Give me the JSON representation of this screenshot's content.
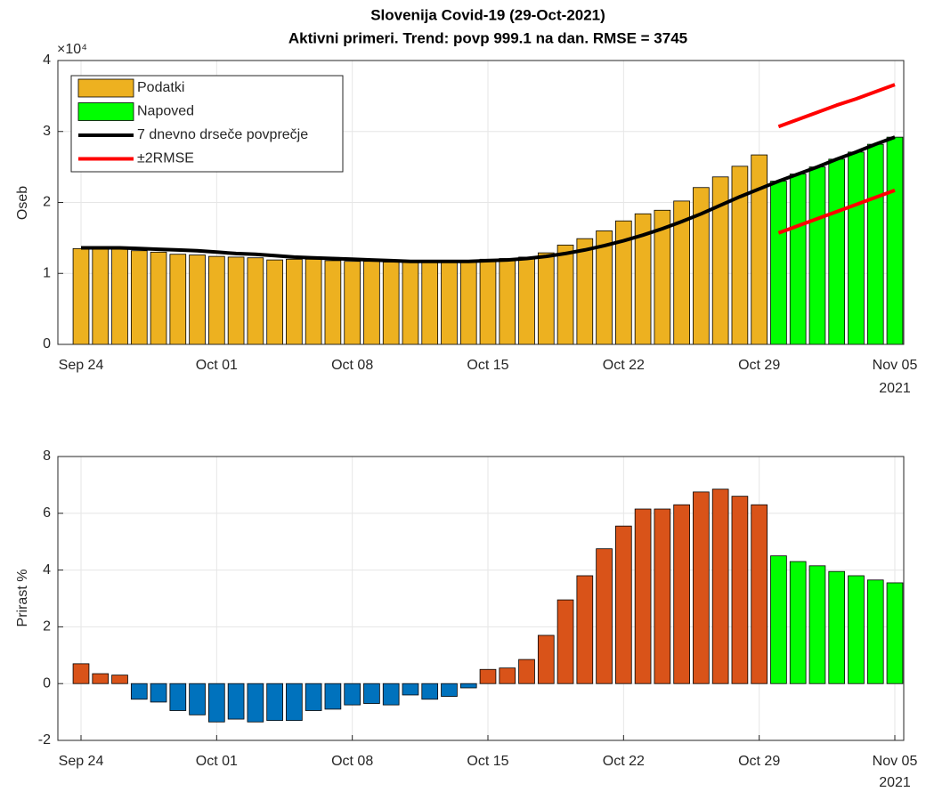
{
  "chart_data": [
    {
      "type": "bar",
      "title": "Slovenija Covid-19 (29-Oct-2021)",
      "subtitle": "Aktivni primeri. Trend: povp 999.1 na dan. RMSE = 3745",
      "ylabel": "Oseb",
      "y_exponent": "×10⁴",
      "categories": [
        "Sep 24",
        null,
        null,
        null,
        null,
        null,
        null,
        "Oct 01",
        null,
        null,
        null,
        null,
        null,
        null,
        "Oct 08",
        null,
        null,
        null,
        null,
        null,
        null,
        "Oct 15",
        null,
        null,
        null,
        null,
        null,
        null,
        "Oct 22",
        null,
        null,
        null,
        null,
        null,
        null,
        "Oct 29",
        null,
        null,
        null,
        null,
        null,
        null,
        "Nov 05"
      ],
      "x_year_label": "2021",
      "ylim": [
        0,
        4
      ],
      "yticks": [
        0,
        1,
        2,
        3,
        4
      ],
      "grid": true,
      "legend": "northwest",
      "series": [
        {
          "name": "Podatki",
          "style": "bar",
          "color": "#edb120",
          "values": [
            1.35,
            1.36,
            1.35,
            1.32,
            1.3,
            1.27,
            1.26,
            1.24,
            1.23,
            1.22,
            1.19,
            1.2,
            1.2,
            1.18,
            1.17,
            1.17,
            1.16,
            1.16,
            1.16,
            1.16,
            1.17,
            1.2,
            1.21,
            1.23,
            1.29,
            1.4,
            1.49,
            1.6,
            1.74,
            1.84,
            1.89,
            2.02,
            2.21,
            2.36,
            2.51,
            2.67,
            null,
            null,
            null,
            null,
            null,
            null,
            null
          ]
        },
        {
          "name": "Napoved",
          "style": "bar",
          "color": "#00ff00",
          "values": [
            null,
            null,
            null,
            null,
            null,
            null,
            null,
            null,
            null,
            null,
            null,
            null,
            null,
            null,
            null,
            null,
            null,
            null,
            null,
            null,
            null,
            null,
            null,
            null,
            null,
            null,
            null,
            null,
            null,
            null,
            null,
            null,
            null,
            null,
            null,
            null,
            2.3,
            2.4,
            2.5,
            2.61,
            2.71,
            2.82,
            2.92
          ]
        },
        {
          "name": "7 dnevno drseče povprečje",
          "style": "line",
          "color": "#000000",
          "values": [
            1.36,
            1.36,
            1.36,
            1.35,
            1.34,
            1.33,
            1.32,
            1.3,
            1.28,
            1.27,
            1.25,
            1.23,
            1.22,
            1.21,
            1.2,
            1.19,
            1.18,
            1.17,
            1.17,
            1.17,
            1.17,
            1.18,
            1.19,
            1.21,
            1.24,
            1.28,
            1.33,
            1.39,
            1.46,
            1.54,
            1.63,
            1.73,
            1.84,
            1.96,
            2.08,
            2.19,
            2.3,
            2.4,
            2.5,
            2.61,
            2.71,
            2.82,
            2.92
          ]
        },
        {
          "name": "±2RMSE",
          "style": "line",
          "color": "#ff0000",
          "values": [
            null,
            null,
            null,
            null,
            null,
            null,
            null,
            null,
            null,
            null,
            null,
            null,
            null,
            null,
            null,
            null,
            null,
            null,
            null,
            null,
            null,
            null,
            null,
            null,
            null,
            null,
            null,
            null,
            null,
            null,
            null,
            null,
            null,
            null,
            null,
            null,
            3.07,
            3.17,
            3.27,
            3.37,
            3.46,
            3.56,
            3.66
          ]
        },
        {
          "style": "line",
          "color": "#ff0000",
          "values": [
            null,
            null,
            null,
            null,
            null,
            null,
            null,
            null,
            null,
            null,
            null,
            null,
            null,
            null,
            null,
            null,
            null,
            null,
            null,
            null,
            null,
            null,
            null,
            null,
            null,
            null,
            null,
            null,
            null,
            null,
            null,
            null,
            null,
            null,
            null,
            null,
            1.57,
            1.67,
            1.77,
            1.87,
            1.97,
            2.07,
            2.17
          ]
        }
      ]
    },
    {
      "type": "bar",
      "ylabel": "Prirast %",
      "categories": [
        "Sep 24",
        null,
        null,
        null,
        null,
        null,
        null,
        "Oct 01",
        null,
        null,
        null,
        null,
        null,
        null,
        "Oct 08",
        null,
        null,
        null,
        null,
        null,
        null,
        "Oct 15",
        null,
        null,
        null,
        null,
        null,
        null,
        "Oct 22",
        null,
        null,
        null,
        null,
        null,
        null,
        "Oct 29",
        null,
        null,
        null,
        null,
        null,
        null,
        "Nov 05"
      ],
      "x_year_label": "2021",
      "ylim": [
        -2,
        8
      ],
      "yticks": [
        -2,
        0,
        2,
        4,
        6,
        8
      ],
      "grid": true,
      "series": [
        {
          "style": "bar",
          "color": "#d95319",
          "negative_color": "#0072bd",
          "values": [
            0.7,
            0.35,
            0.3,
            -0.55,
            -0.65,
            -0.95,
            -1.1,
            -1.35,
            -1.25,
            -1.35,
            -1.3,
            -1.3,
            -0.95,
            -0.9,
            -0.75,
            -0.7,
            -0.75,
            -0.4,
            -0.55,
            -0.45,
            -0.15,
            0.5,
            0.55,
            0.85,
            1.7,
            2.95,
            3.8,
            4.75,
            5.55,
            6.15,
            6.15,
            6.3,
            6.75,
            6.85,
            6.6,
            6.3,
            null,
            null,
            null,
            null,
            null,
            null,
            null
          ]
        },
        {
          "style": "bar",
          "color": "#00ff00",
          "values": [
            null,
            null,
            null,
            null,
            null,
            null,
            null,
            null,
            null,
            null,
            null,
            null,
            null,
            null,
            null,
            null,
            null,
            null,
            null,
            null,
            null,
            null,
            null,
            null,
            null,
            null,
            null,
            null,
            null,
            null,
            null,
            null,
            null,
            null,
            null,
            null,
            4.5,
            4.3,
            4.15,
            3.95,
            3.8,
            3.65,
            3.55
          ]
        }
      ]
    }
  ]
}
